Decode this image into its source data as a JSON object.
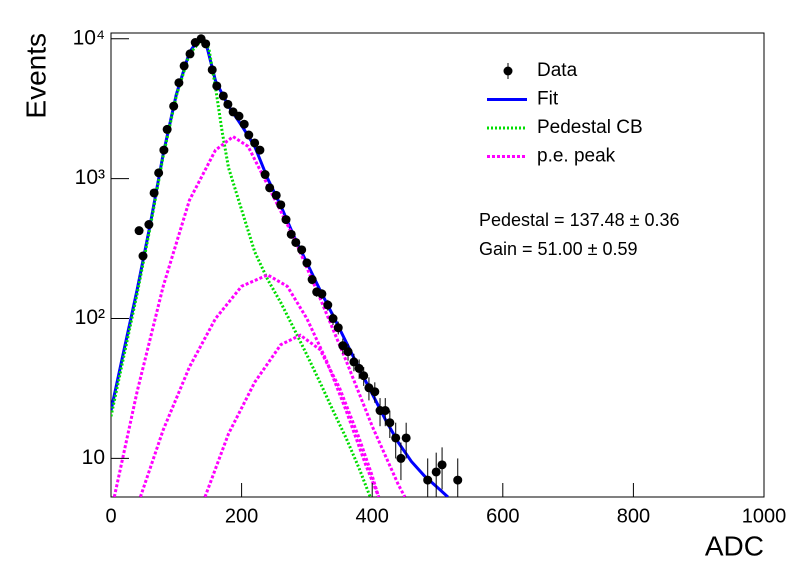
{
  "chart_data": {
    "type": "line",
    "x_label": "ADC",
    "y_label": "Events",
    "xlim": [
      0,
      1000
    ],
    "xticks": [
      0,
      200,
      400,
      600,
      800,
      1000
    ],
    "ylim": [
      5.3,
      11000
    ],
    "log_y": true,
    "yticks": [
      10,
      {
        "value": 100,
        "label": "10²"
      },
      {
        "value": 1000,
        "label": "10³"
      },
      {
        "value": 10000,
        "label": "10⁴"
      }
    ],
    "annotations": [
      "Pedestal = 137.48 ± 0.36",
      "Gain = 51.00 ± 0.59"
    ],
    "series": [
      {
        "name": "Data",
        "type": "scatter",
        "color": "#000000",
        "x": [
          43,
          49,
          58,
          66,
          73,
          81,
          86,
          96,
          104,
          112,
          121,
          129,
          138,
          145,
          155,
          162,
          172,
          179,
          187,
          196,
          204,
          211,
          220,
          228,
          236,
          243,
          253,
          260,
          268,
          276,
          283,
          292,
          300,
          308,
          315,
          323,
          332,
          340,
          348,
          355,
          363,
          372,
          380,
          387,
          395,
          404,
          412,
          420,
          427,
          436,
          444,
          452,
          485,
          498,
          507,
          531
        ],
        "values": [
          425,
          280,
          470,
          790,
          1100,
          1600,
          2250,
          3300,
          4850,
          6400,
          7800,
          9400,
          10000,
          9200,
          6000,
          4600,
          3900,
          3400,
          3000,
          2800,
          2450,
          2050,
          1800,
          1600,
          1070,
          860,
          760,
          650,
          510,
          400,
          350,
          310,
          250,
          190,
          155,
          150,
          125,
          100,
          86,
          64,
          58,
          49,
          44,
          39,
          32,
          30,
          22,
          22,
          18,
          14,
          10,
          14,
          7,
          8,
          9,
          7
        ],
        "errors": [
          21,
          17,
          22,
          28,
          33,
          40,
          47,
          57,
          70,
          80,
          88,
          97,
          100,
          96,
          77,
          68,
          62,
          58,
          55,
          53,
          49,
          45,
          42,
          40,
          33,
          29,
          28,
          25,
          23,
          20,
          19,
          18,
          16,
          14,
          12,
          12,
          11,
          10,
          9,
          8,
          8,
          7,
          7,
          6,
          6,
          5,
          5,
          5,
          4,
          4,
          3,
          4,
          3,
          3,
          3,
          3
        ]
      },
      {
        "name": "Fit",
        "type": "line",
        "style": "solid",
        "color": "#0000ff",
        "x": [
          0,
          20,
          40,
          60,
          80,
          100,
          120,
          135,
          145,
          160,
          180,
          200,
          220,
          240,
          260,
          280,
          300,
          320,
          340,
          360,
          380,
          400,
          420,
          440,
          460,
          480,
          500,
          516
        ],
        "values": [
          22,
          60,
          160,
          470,
          1500,
          4000,
          8000,
          10000,
          9500,
          5000,
          3300,
          2400,
          1700,
          1000,
          640,
          390,
          250,
          160,
          105,
          68,
          44,
          29,
          19,
          13,
          9.5,
          7.5,
          6.2,
          5.3
        ]
      },
      {
        "name": "Pedestal CB",
        "type": "line",
        "style": "dotted",
        "color": "#00dd00",
        "x": [
          0,
          20,
          40,
          60,
          80,
          100,
          120,
          140,
          150,
          160,
          170,
          180,
          200,
          220,
          240,
          260,
          280,
          300,
          320,
          340,
          360,
          380,
          397
        ],
        "values": [
          20,
          55,
          150,
          450,
          1450,
          3900,
          7800,
          10000,
          8500,
          4500,
          2200,
          1200,
          600,
          300,
          190,
          130,
          85,
          55,
          35,
          22,
          14,
          8.5,
          5.3
        ]
      },
      {
        "name": "p.e. peak",
        "type": "line",
        "style": "dashed",
        "color": "#ff00ff",
        "x": [
          5,
          40,
          80,
          120,
          160,
          187,
          210,
          240,
          280,
          320,
          360,
          400,
          440,
          450
        ],
        "values": [
          5.3,
          30,
          170,
          700,
          1600,
          2000,
          1700,
          900,
          380,
          140,
          50,
          17,
          6.5,
          5.3
        ]
      },
      {
        "type": "line",
        "style": "dashed",
        "color": "#ff00ff",
        "x": [
          45,
          80,
          120,
          160,
          200,
          240,
          270,
          300,
          330,
          360,
          390,
          410
        ],
        "values": [
          5.3,
          16,
          45,
          100,
          170,
          205,
          170,
          100,
          50,
          22,
          9,
          5.3
        ]
      },
      {
        "type": "line",
        "style": "dashed",
        "color": "#ff00ff",
        "x": [
          144,
          180,
          220,
          260,
          290,
          320,
          350,
          380,
          400,
          410
        ],
        "values": [
          5.3,
          15,
          35,
          65,
          76,
          60,
          32,
          14,
          7.5,
          5.3
        ]
      }
    ]
  }
}
